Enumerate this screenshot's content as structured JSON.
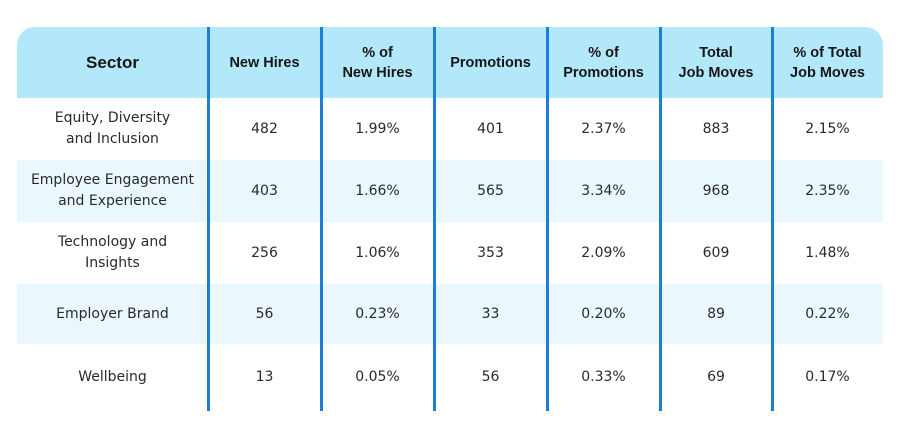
{
  "chart_data": {
    "type": "table",
    "columns": [
      "Sector",
      "New Hires",
      "% of\nNew Hires",
      "Promotions",
      "% of\nPromotions",
      "Total\nJob Moves",
      "% of Total\nJob Moves"
    ],
    "rows": [
      [
        "Equity, Diversity\nand Inclusion",
        "482",
        "1.99%",
        "401",
        "2.37%",
        "883",
        "2.15%"
      ],
      [
        "Employee Engagement\nand Experience",
        "403",
        "1.66%",
        "565",
        "3.34%",
        "968",
        "2.35%"
      ],
      [
        "Technology and\nInsights",
        "256",
        "1.06%",
        "353",
        "2.09%",
        "609",
        "1.48%"
      ],
      [
        "Employer Brand",
        "56",
        "0.23%",
        "33",
        "0.20%",
        "89",
        "0.22%"
      ],
      [
        "Wellbeing",
        "13",
        "0.05%",
        "56",
        "0.33%",
        "69",
        "0.17%"
      ]
    ]
  },
  "colors": {
    "header_bg": "#b3e8fb",
    "alt_row_bg": "#eaf8fe",
    "divider": "#1c7ed6"
  }
}
